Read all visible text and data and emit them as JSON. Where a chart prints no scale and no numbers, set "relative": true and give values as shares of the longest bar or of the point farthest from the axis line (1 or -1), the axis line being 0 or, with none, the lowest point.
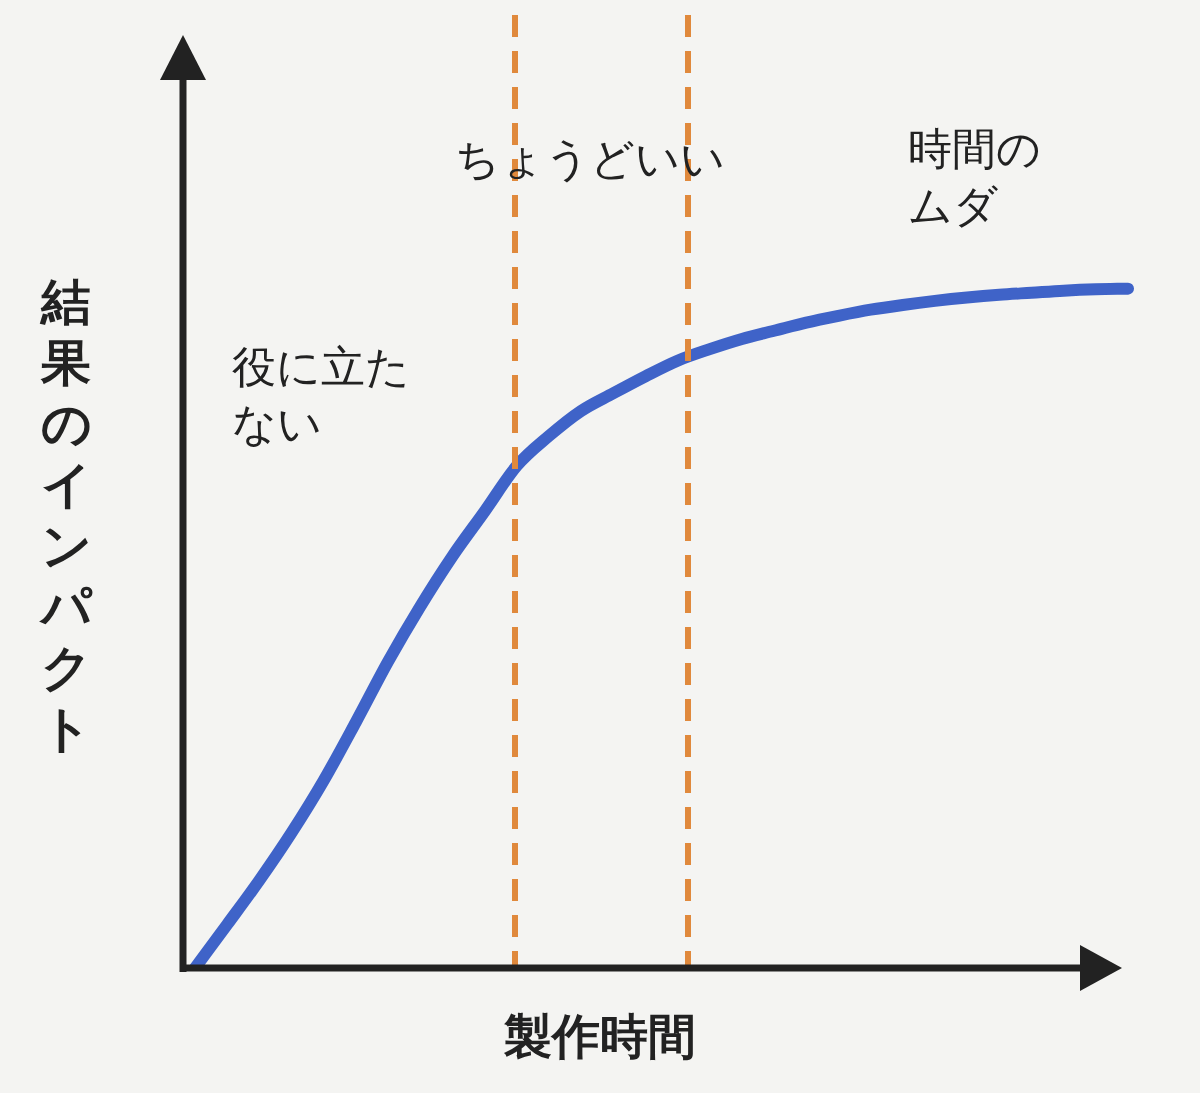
{
  "chart_data": {
    "type": "line",
    "relative": true,
    "xlabel": "製作時間",
    "ylabel": "結果のインパクト",
    "categories": [
      null,
      null,
      null,
      null,
      null,
      null,
      null,
      null,
      null,
      null,
      null,
      null,
      null,
      null,
      null,
      null,
      null,
      null,
      null,
      null,
      null,
      null,
      null,
      null,
      null,
      null,
      null,
      null,
      null,
      null
    ],
    "series": [
      {
        "color": "#3f63c8",
        "values": [
          0,
          0.064,
          0.129,
          0.199,
          0.276,
          0.362,
          0.451,
          0.532,
          0.606,
          0.672,
          0.739,
          0.783,
          0.82,
          0.846,
          0.871,
          0.894,
          0.911,
          0.926,
          0.938,
          0.95,
          0.96,
          0.969,
          0.976,
          0.982,
          0.987,
          0.991,
          0.994,
          0.997,
          0.999,
          1
        ]
      }
    ],
    "annotations": [
      "役に立たない",
      "ちょうどいい",
      "時間のムダ"
    ],
    "legend": false,
    "grid": false,
    "tick_labels": false
  }
}
